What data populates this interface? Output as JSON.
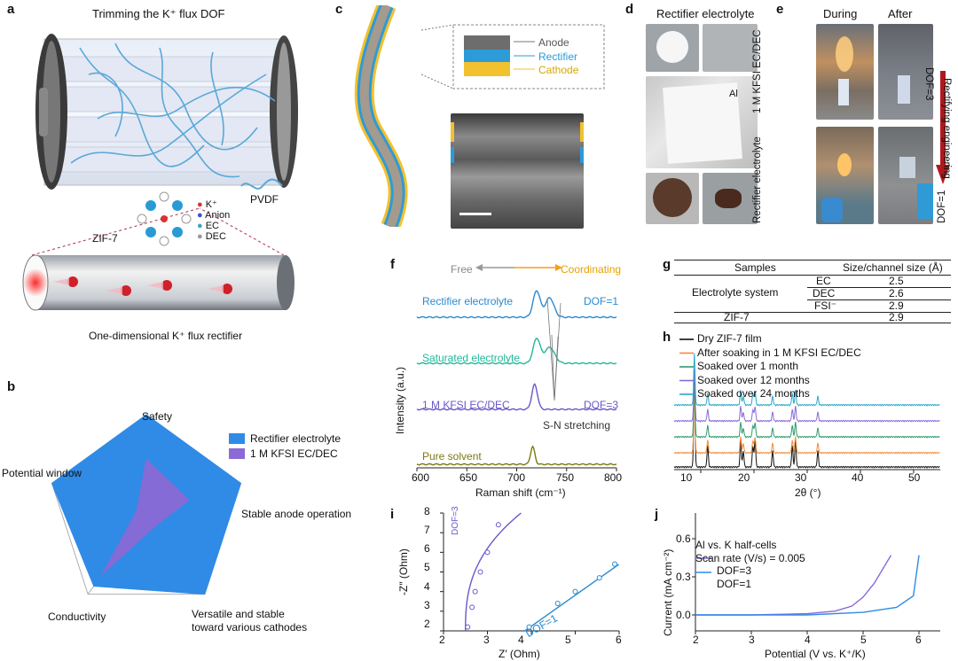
{
  "panels": {
    "a": {
      "label": "a",
      "title": "Trimming the K⁺ flux DOF",
      "pvdf": "PVDF",
      "zif": "ZIF-7",
      "legend": [
        "K⁺",
        "Anion",
        "EC",
        "DEC"
      ],
      "bottom": "One-dimensional K⁺ flux rectifier"
    },
    "b": {
      "label": "b",
      "axes": [
        "Safety",
        "Stable anode operation",
        "Versatile and stable",
        "toward various cathodes",
        "Conductivity",
        "Potential window"
      ],
      "legend": [
        "Rectifier electrolyte",
        "1 M KFSI EC/DEC"
      ],
      "colors": {
        "rectifier": "#2f8be6",
        "kfsi": "#8a6ad6"
      }
    },
    "c": {
      "label": "c",
      "legend": [
        "Anode",
        "Rectifier",
        "Cathode"
      ],
      "colors": {
        "anode": "#6d6d6d",
        "rectifier": "#2d9bd8",
        "cathode": "#f2c12e"
      }
    },
    "d": {
      "label": "d",
      "title": "Rectifier electrolyte",
      "al": "Al"
    },
    "e": {
      "label": "e",
      "cols": [
        "During",
        "After"
      ],
      "rows": [
        "1 M KFSI EC/DEC",
        "Rectifier electrolyte"
      ],
      "dof_top": "DOF=3",
      "dof_bottom": "DOF=1",
      "arrow": "Rectifying engineering"
    },
    "f": {
      "label": "f",
      "free": "Free",
      "coord": "Coordinating",
      "ylabel": "Intensity (a.u.)",
      "xlabel": "Raman shift (cm⁻¹)",
      "traces": [
        "Rectifier electrolyte",
        "Saturated electrolyte",
        "1 M KFSI EC/DEC",
        "Pure solvent"
      ],
      "dof1": "DOF=1",
      "dof3": "DOF=3",
      "sn": "S-N stretching",
      "xticks": [
        "600",
        "650",
        "700",
        "750",
        "800"
      ]
    },
    "g": {
      "label": "g",
      "headers": [
        "Samples",
        "Size/channel size (Å)"
      ],
      "group": "Electrolyte system",
      "rows": [
        {
          "name": "EC",
          "value": "2.5"
        },
        {
          "name": "DEC",
          "value": "2.6"
        },
        {
          "name": "FSI⁻",
          "value": "2.9"
        },
        {
          "name": "ZIF-7",
          "value": "2.9"
        }
      ]
    },
    "h": {
      "label": "h",
      "legend": [
        "Dry ZIF-7 film",
        "After soaking in 1 M KFSI EC/DEC",
        "Soaked over 1 month",
        "Soaked over 12 months",
        "Soaked over 24 months"
      ],
      "colors": [
        "#111111",
        "#f28c3a",
        "#2e9a6a",
        "#8a6ad6",
        "#2aa8c8"
      ],
      "xlabel": "2θ (°)",
      "xticks": [
        "10",
        "20",
        "30",
        "40",
        "50"
      ]
    },
    "i": {
      "label": "i",
      "ylabel": "-Z″ (Ohm)",
      "xlabel": "Z′ (Ohm)",
      "dof3": "DOF=3",
      "dof1": "DOF=1",
      "xticks": [
        "2",
        "3",
        "4",
        "5",
        "6"
      ],
      "yticks": [
        "2",
        "3",
        "4",
        "5",
        "6",
        "7",
        "8"
      ]
    },
    "j": {
      "label": "j",
      "title1": "Al vs. K half-cells",
      "title2": "Scan rate (V/s) = 0.005",
      "legend": [
        "DOF=3",
        "DOF=1"
      ],
      "ylabel": "Current (mA cm⁻²)",
      "xlabel": "Potential (V vs. K⁺/K)",
      "xticks": [
        "2",
        "3",
        "4",
        "5",
        "6"
      ],
      "yticks": [
        "0.0",
        "0.3",
        "0.6"
      ]
    }
  },
  "chart_data": [
    {
      "type": "radar",
      "axes": [
        "Safety",
        "Stable anode operation",
        "Versatile and stable toward various cathodes",
        "Conductivity",
        "Potential window"
      ],
      "series": [
        {
          "name": "Rectifier electrolyte",
          "values": [
            1.0,
            1.0,
            1.0,
            0.9,
            1.0
          ]
        },
        {
          "name": "1 M KFSI EC/DEC",
          "values": [
            0.55,
            0.45,
            0.15,
            0.75,
            0.1
          ]
        }
      ]
    },
    {
      "type": "line",
      "title": "",
      "xlabel": "Raman shift (cm⁻¹)",
      "ylabel": "Intensity (a.u.)",
      "xlim": [
        600,
        800
      ],
      "series": [
        {
          "name": "Rectifier electrolyte",
          "peaks": [
            720,
            733
          ]
        },
        {
          "name": "Saturated electrolyte",
          "peaks": [
            720,
            733
          ]
        },
        {
          "name": "1 M KFSI EC/DEC",
          "peaks": [
            718
          ]
        },
        {
          "name": "Pure solvent",
          "peaks": [
            716
          ]
        }
      ]
    },
    {
      "type": "line",
      "xlabel": "2θ (°)",
      "xlim": [
        5,
        55
      ],
      "peaks": [
        8.8,
        11.3,
        17.5,
        18.0,
        19.8,
        20.2,
        23.5,
        27.2,
        27.8,
        32.0
      ]
    },
    {
      "type": "scatter",
      "xlabel": "Z′ (Ohm)",
      "ylabel": "-Z″ (Ohm)",
      "xlim": [
        2,
        6
      ],
      "ylim": [
        2,
        8
      ],
      "series": [
        {
          "name": "DOF=3",
          "x": [
            2.55,
            2.65,
            2.72,
            2.84,
            3.0,
            3.25
          ],
          "y": [
            2.2,
            3.2,
            4.0,
            5.0,
            6.0,
            7.4
          ]
        },
        {
          "name": "DOF=1",
          "x": [
            3.95,
            4.6,
            5.0,
            5.55,
            5.9
          ],
          "y": [
            2.2,
            3.4,
            4.0,
            4.7,
            5.4
          ]
        }
      ]
    },
    {
      "type": "line",
      "xlabel": "Potential (V vs. K⁺/K)",
      "ylabel": "Current (mA cm⁻²)",
      "xlim": [
        2,
        6.3
      ],
      "ylim": [
        -0.05,
        0.7
      ],
      "series": [
        {
          "name": "DOF=3",
          "x": [
            2.0,
            3.0,
            4.0,
            4.5,
            4.8,
            5.0,
            5.2,
            5.5
          ],
          "y": [
            0.0,
            0.0,
            0.01,
            0.03,
            0.07,
            0.14,
            0.25,
            0.47
          ]
        },
        {
          "name": "DOF=1",
          "x": [
            2.0,
            3.0,
            4.0,
            5.0,
            5.6,
            5.9,
            6.0
          ],
          "y": [
            0.0,
            0.0,
            0.0,
            0.02,
            0.06,
            0.15,
            0.47
          ]
        }
      ]
    }
  ]
}
